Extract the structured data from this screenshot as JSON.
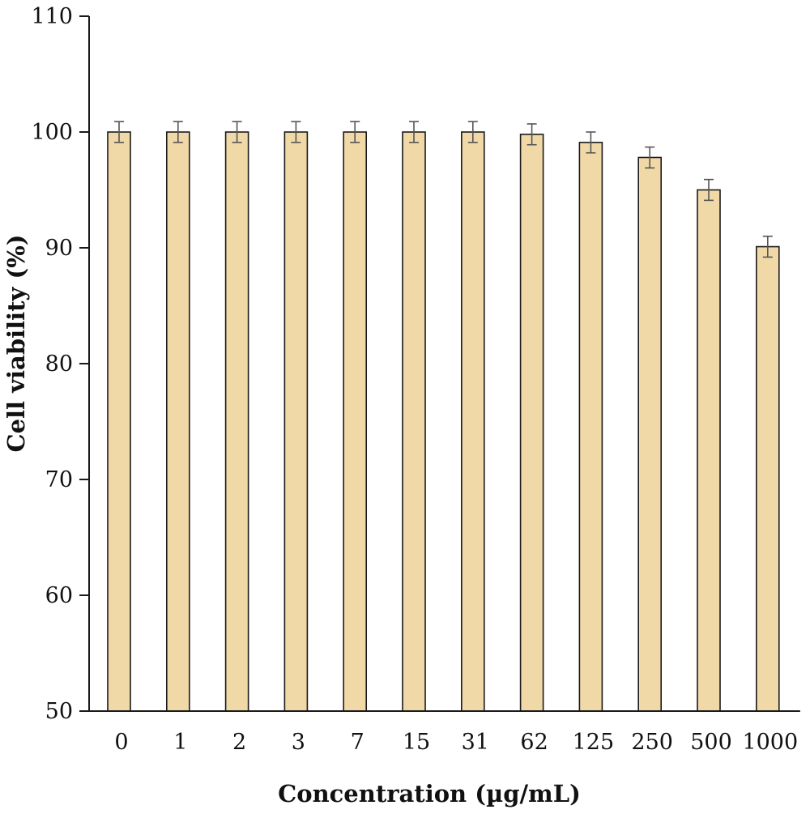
{
  "chart_data": {
    "type": "bar",
    "title": "",
    "xlabel": "Concentration (µg/mL)",
    "ylabel": "Cell viability (%)",
    "categories": [
      "0",
      "1",
      "2",
      "3",
      "7",
      "15",
      "31",
      "62",
      "125",
      "250",
      "500",
      "1000"
    ],
    "values": [
      100,
      100,
      100,
      100,
      100,
      100,
      100,
      99.8,
      99.1,
      97.8,
      95.0,
      90.1
    ],
    "errors": [
      0.9,
      0.9,
      0.9,
      0.9,
      0.9,
      0.9,
      0.9,
      0.9,
      0.9,
      0.9,
      0.9,
      0.9
    ],
    "ylim": [
      50,
      110
    ],
    "yticks": [
      50,
      60,
      70,
      80,
      90,
      100,
      110
    ],
    "grid": false,
    "legend": "none",
    "bar_color": "#f1d9a7",
    "bar_edge_color": "#1a1a1a",
    "error_bar_color": "#555555"
  }
}
